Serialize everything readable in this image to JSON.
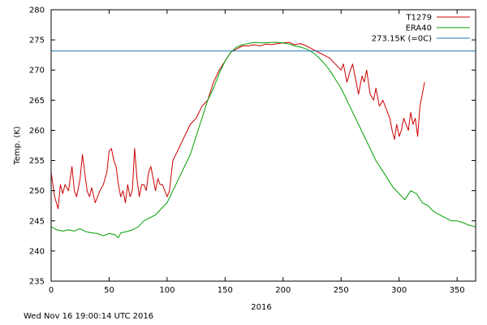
{
  "timestamp": "Wed Nov 16 19:00:14 UTC 2016",
  "chart_data": {
    "type": "line",
    "title": "",
    "xlabel": "2016",
    "ylabel": "Temp. (K)",
    "xlim": [
      0,
      366
    ],
    "ylim": [
      235,
      280
    ],
    "xticks": [
      0,
      50,
      100,
      150,
      200,
      250,
      300,
      350
    ],
    "yticks": [
      235,
      240,
      245,
      250,
      255,
      260,
      265,
      270,
      275,
      280
    ],
    "grid": false,
    "legend_position": "top-right",
    "series": [
      {
        "name": "T1279",
        "color": "#cc0000",
        "x": [
          0,
          3,
          6,
          8,
          10,
          12,
          15,
          18,
          20,
          22,
          25,
          27,
          29,
          31,
          33,
          35,
          38,
          40,
          42,
          45,
          48,
          50,
          52,
          54,
          56,
          58,
          60,
          62,
          64,
          66,
          68,
          70,
          72,
          74,
          76,
          78,
          80,
          82,
          84,
          86,
          88,
          90,
          92,
          94,
          96,
          98,
          100,
          102,
          105,
          110,
          115,
          120,
          125,
          130,
          135,
          140,
          145,
          150,
          155,
          160,
          165,
          170,
          175,
          180,
          185,
          190,
          195,
          200,
          205,
          210,
          215,
          220,
          225,
          230,
          235,
          240,
          245,
          250,
          252,
          255,
          258,
          260,
          263,
          265,
          268,
          270,
          272,
          275,
          278,
          280,
          283,
          286,
          290,
          292,
          294,
          296,
          298,
          300,
          302,
          304,
          306,
          308,
          310,
          312,
          314,
          316,
          318,
          320,
          322
        ],
        "y": [
          253,
          249,
          247,
          251,
          249.5,
          251,
          250,
          254,
          250,
          249,
          252,
          256,
          253,
          250,
          249,
          250.5,
          248,
          249,
          250,
          251,
          253,
          256.5,
          257,
          255,
          254,
          251,
          249,
          250,
          248,
          251,
          249,
          250,
          257,
          252,
          249,
          251,
          251,
          250,
          253,
          254,
          252,
          250,
          252,
          251,
          251,
          250,
          249,
          250,
          255,
          257,
          259,
          261,
          262,
          264,
          265,
          268,
          270,
          271.5,
          273,
          273.5,
          274,
          274,
          274.2,
          274,
          274.3,
          274.2,
          274.4,
          274.5,
          274.6,
          274.2,
          274.4,
          274,
          273.5,
          273,
          272.5,
          272,
          271,
          270,
          271,
          268,
          270,
          271,
          268,
          266,
          269,
          268,
          270,
          266,
          265,
          267,
          264,
          265,
          263,
          262,
          260,
          258.5,
          261,
          259,
          260,
          262,
          261,
          260,
          263,
          261,
          262,
          259,
          264,
          266,
          268
        ]
      },
      {
        "name": "ERA40",
        "color": "#00a000",
        "x": [
          0,
          5,
          10,
          15,
          20,
          25,
          30,
          35,
          40,
          45,
          50,
          55,
          58,
          60,
          65,
          70,
          75,
          80,
          85,
          90,
          95,
          100,
          105,
          110,
          115,
          120,
          125,
          130,
          135,
          140,
          145,
          150,
          155,
          160,
          165,
          170,
          175,
          180,
          185,
          190,
          195,
          200,
          205,
          210,
          215,
          220,
          225,
          230,
          235,
          240,
          245,
          250,
          255,
          260,
          265,
          270,
          275,
          280,
          285,
          290,
          295,
          300,
          305,
          310,
          315,
          320,
          325,
          330,
          335,
          340,
          345,
          350,
          355,
          360,
          366
        ],
        "y": [
          244,
          243.5,
          243.3,
          243.5,
          243.3,
          243.7,
          243.2,
          243,
          242.9,
          242.5,
          242.9,
          242.7,
          242.2,
          243,
          243.2,
          243.5,
          244,
          245,
          245.5,
          246,
          247,
          248,
          250,
          252,
          254,
          256,
          259,
          262,
          265,
          267,
          269.5,
          271.5,
          273,
          273.8,
          274.2,
          274.4,
          274.6,
          274.5,
          274.5,
          274.6,
          274.6,
          274.5,
          274.3,
          274,
          273.8,
          273.5,
          273,
          272.2,
          271.2,
          270,
          268.5,
          267,
          265,
          263,
          261,
          259,
          257,
          255,
          253.5,
          252,
          250.5,
          249.5,
          248.5,
          250,
          249.5,
          248,
          247.5,
          246.5,
          246,
          245.5,
          245,
          245,
          244.7,
          244.3,
          244
        ]
      },
      {
        "name": "273.15K (=0C)",
        "color": "#1f77b4",
        "x": [
          0,
          366
        ],
        "y": [
          273.15,
          273.15
        ]
      }
    ]
  }
}
